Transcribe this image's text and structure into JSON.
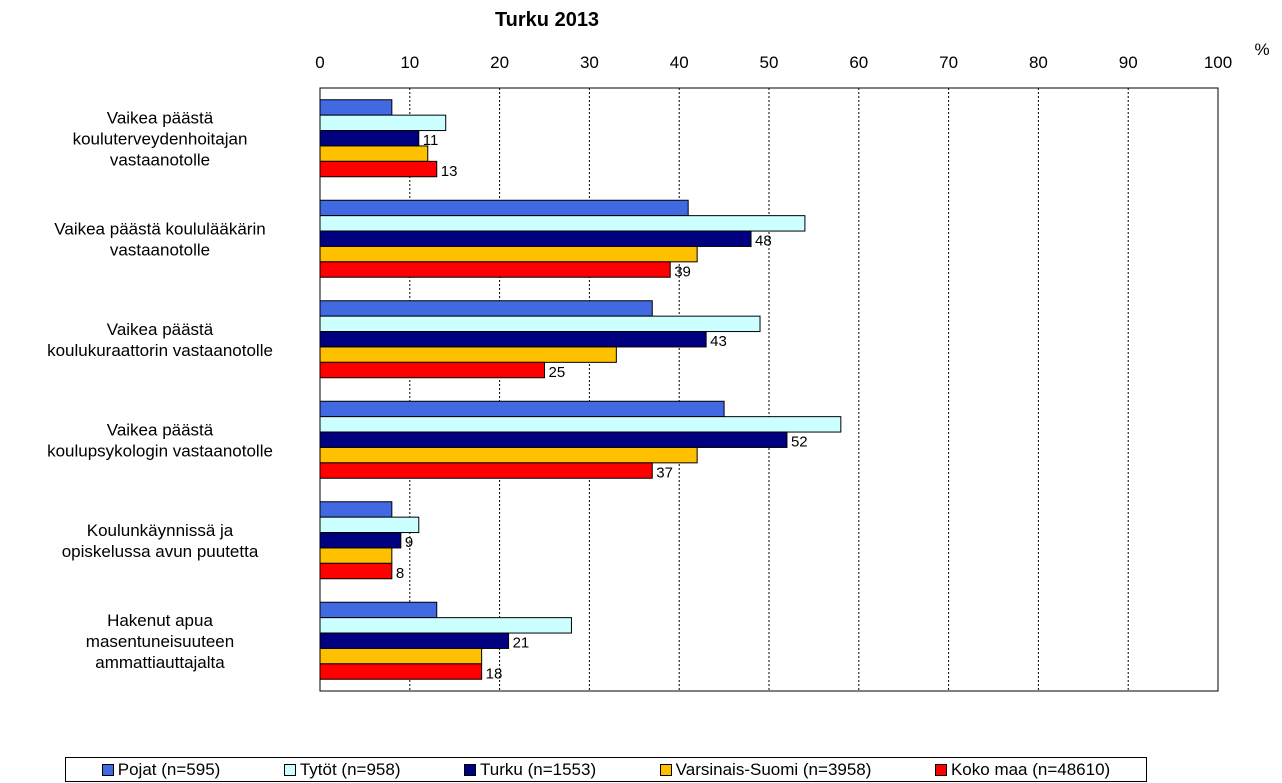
{
  "chart_data": {
    "type": "bar",
    "orientation": "horizontal",
    "title": "Turku 2013",
    "unit": "%",
    "xlim": [
      0,
      100
    ],
    "xticks": [
      0,
      10,
      20,
      30,
      40,
      50,
      60,
      70,
      80,
      90,
      100
    ],
    "grid": "vertical dashed",
    "legend_position": "bottom",
    "categories": [
      [
        "Vaikea päästä",
        "kouluterveydenhoitajan",
        "vastaanotolle"
      ],
      [
        "Vaikea päästä koululääkärin",
        "vastaanotolle"
      ],
      [
        "Vaikea päästä",
        "koulukuraattorin vastaanotolle"
      ],
      [
        "Vaikea päästä",
        "koulupsykologin vastaanotolle"
      ],
      [
        "Koulunkäynnissä ja",
        "opiskelussa avun puutetta"
      ],
      [
        "Hakenut apua",
        "masentuneisuuteen",
        "ammattiauttajalta"
      ]
    ],
    "series": [
      {
        "name": "Pojat (n=595)",
        "color": "#4169E1",
        "values": [
          8,
          41,
          37,
          45,
          8,
          13
        ],
        "labels": [
          null,
          null,
          null,
          null,
          null,
          null
        ]
      },
      {
        "name": "Tytöt (n=958)",
        "color": "#CCFFFF",
        "values": [
          14,
          54,
          49,
          58,
          11,
          28
        ],
        "labels": [
          null,
          null,
          null,
          null,
          null,
          null
        ]
      },
      {
        "name": "Turku (n=1553)",
        "color": "#000080",
        "values": [
          11,
          48,
          43,
          52,
          9,
          21
        ],
        "labels": [
          "11",
          "48",
          "43",
          "52",
          "9",
          "21"
        ]
      },
      {
        "name": "Varsinais-Suomi (n=3958)",
        "color": "#FFC000",
        "values": [
          12,
          42,
          33,
          42,
          8,
          18
        ],
        "labels": [
          null,
          null,
          null,
          null,
          null,
          null
        ]
      },
      {
        "name": "Koko maa (n=48610)",
        "color": "#FF0000",
        "values": [
          13,
          39,
          25,
          37,
          8,
          18
        ],
        "labels": [
          "13",
          "39",
          "25",
          "37",
          "8",
          "18"
        ]
      }
    ]
  }
}
